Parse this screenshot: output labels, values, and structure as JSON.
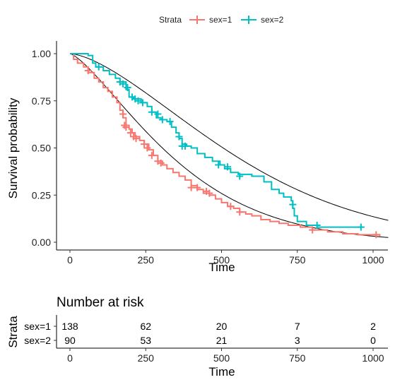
{
  "chart_data": {
    "type": "line",
    "title": "",
    "xlabel": "Time",
    "ylabel": "Survival probability",
    "xlim": [
      0,
      1050
    ],
    "ylim": [
      0,
      1.0
    ],
    "xticks": [
      "0",
      "250",
      "500",
      "750",
      "1000"
    ],
    "yticks": [
      "0.00",
      "0.25",
      "0.50",
      "0.75",
      "1.00"
    ],
    "grid": false,
    "legend": {
      "title": "Strata",
      "placement": "top",
      "entries": [
        {
          "label": "sex=1",
          "color": "#F8766D"
        },
        {
          "label": "sex=2",
          "color": "#00BFC4"
        }
      ]
    },
    "series": [
      {
        "name": "sex=1",
        "color": "#F8766D",
        "type": "step",
        "points": [
          [
            0,
            1.0
          ],
          [
            12,
            0.97
          ],
          [
            25,
            0.95
          ],
          [
            45,
            0.93
          ],
          [
            60,
            0.9
          ],
          [
            80,
            0.87
          ],
          [
            95,
            0.85
          ],
          [
            110,
            0.82
          ],
          [
            125,
            0.8
          ],
          [
            140,
            0.77
          ],
          [
            155,
            0.74
          ],
          [
            165,
            0.7
          ],
          [
            175,
            0.66
          ],
          [
            185,
            0.62
          ],
          [
            195,
            0.6
          ],
          [
            205,
            0.58
          ],
          [
            215,
            0.56
          ],
          [
            230,
            0.54
          ],
          [
            245,
            0.52
          ],
          [
            260,
            0.49
          ],
          [
            275,
            0.46
          ],
          [
            290,
            0.43
          ],
          [
            305,
            0.41
          ],
          [
            320,
            0.39
          ],
          [
            340,
            0.37
          ],
          [
            360,
            0.35
          ],
          [
            380,
            0.33
          ],
          [
            400,
            0.3
          ],
          [
            420,
            0.28
          ],
          [
            440,
            0.26
          ],
          [
            460,
            0.25
          ],
          [
            480,
            0.23
          ],
          [
            500,
            0.21
          ],
          [
            520,
            0.19
          ],
          [
            540,
            0.18
          ],
          [
            560,
            0.16
          ],
          [
            580,
            0.15
          ],
          [
            600,
            0.14
          ],
          [
            630,
            0.12
          ],
          [
            660,
            0.11
          ],
          [
            690,
            0.1
          ],
          [
            720,
            0.09
          ],
          [
            760,
            0.08
          ],
          [
            800,
            0.065
          ],
          [
            850,
            0.055
          ],
          [
            900,
            0.045
          ],
          [
            950,
            0.04
          ],
          [
            1022,
            0.03
          ]
        ],
        "censored": [
          [
            60,
            0.91
          ],
          [
            175,
            0.68
          ],
          [
            180,
            0.62
          ],
          [
            185,
            0.61
          ],
          [
            200,
            0.58
          ],
          [
            210,
            0.56
          ],
          [
            218,
            0.55
          ],
          [
            245,
            0.52
          ],
          [
            255,
            0.5
          ],
          [
            270,
            0.46
          ],
          [
            290,
            0.43
          ],
          [
            300,
            0.42
          ],
          [
            400,
            0.29
          ],
          [
            420,
            0.29
          ],
          [
            450,
            0.27
          ],
          [
            460,
            0.26
          ],
          [
            530,
            0.19
          ],
          [
            560,
            0.16
          ],
          [
            800,
            0.065
          ],
          [
            1010,
            0.04
          ]
        ],
        "fit": "weibull"
      },
      {
        "name": "sex=2",
        "color": "#00BFC4",
        "type": "step",
        "points": [
          [
            0,
            1.0
          ],
          [
            60,
            0.99
          ],
          [
            75,
            0.95
          ],
          [
            85,
            0.93
          ],
          [
            110,
            0.91
          ],
          [
            130,
            0.89
          ],
          [
            150,
            0.87
          ],
          [
            165,
            0.85
          ],
          [
            185,
            0.81
          ],
          [
            195,
            0.77
          ],
          [
            210,
            0.76
          ],
          [
            235,
            0.74
          ],
          [
            255,
            0.72
          ],
          [
            270,
            0.69
          ],
          [
            285,
            0.66
          ],
          [
            300,
            0.65
          ],
          [
            320,
            0.64
          ],
          [
            335,
            0.61
          ],
          [
            350,
            0.58
          ],
          [
            360,
            0.55
          ],
          [
            370,
            0.52
          ],
          [
            385,
            0.51
          ],
          [
            400,
            0.5
          ],
          [
            420,
            0.47
          ],
          [
            445,
            0.45
          ],
          [
            470,
            0.43
          ],
          [
            495,
            0.41
          ],
          [
            510,
            0.39
          ],
          [
            530,
            0.37
          ],
          [
            555,
            0.36
          ],
          [
            600,
            0.35
          ],
          [
            640,
            0.32
          ],
          [
            665,
            0.28
          ],
          [
            690,
            0.26
          ],
          [
            705,
            0.24
          ],
          [
            730,
            0.22
          ],
          [
            735,
            0.18
          ],
          [
            740,
            0.14
          ],
          [
            750,
            0.11
          ],
          [
            780,
            0.09
          ],
          [
            815,
            0.08
          ],
          [
            965,
            0.08
          ]
        ],
        "censored": [
          [
            95,
            0.93
          ],
          [
            165,
            0.85
          ],
          [
            175,
            0.84
          ],
          [
            190,
            0.82
          ],
          [
            205,
            0.77
          ],
          [
            215,
            0.76
          ],
          [
            225,
            0.75
          ],
          [
            240,
            0.74
          ],
          [
            270,
            0.69
          ],
          [
            290,
            0.68
          ],
          [
            305,
            0.65
          ],
          [
            330,
            0.64
          ],
          [
            360,
            0.56
          ],
          [
            370,
            0.51
          ],
          [
            380,
            0.51
          ],
          [
            490,
            0.41
          ],
          [
            520,
            0.4
          ],
          [
            560,
            0.35
          ],
          [
            735,
            0.2
          ],
          [
            815,
            0.09
          ],
          [
            960,
            0.08
          ]
        ],
        "fit": "weibull"
      }
    ],
    "risk_table": {
      "title": "Number at risk",
      "ylabel": "Strata",
      "xlabel": "Time",
      "times": [
        0,
        250,
        500,
        750,
        1000
      ],
      "rows": [
        {
          "label": "sex=1",
          "color": "#F8766D",
          "counts": [
            "138",
            "62",
            "20",
            "7",
            "2"
          ]
        },
        {
          "label": "sex=2",
          "color": "#00BFC4",
          "counts": [
            "90",
            "53",
            "21",
            "3",
            "0"
          ]
        }
      ]
    }
  }
}
